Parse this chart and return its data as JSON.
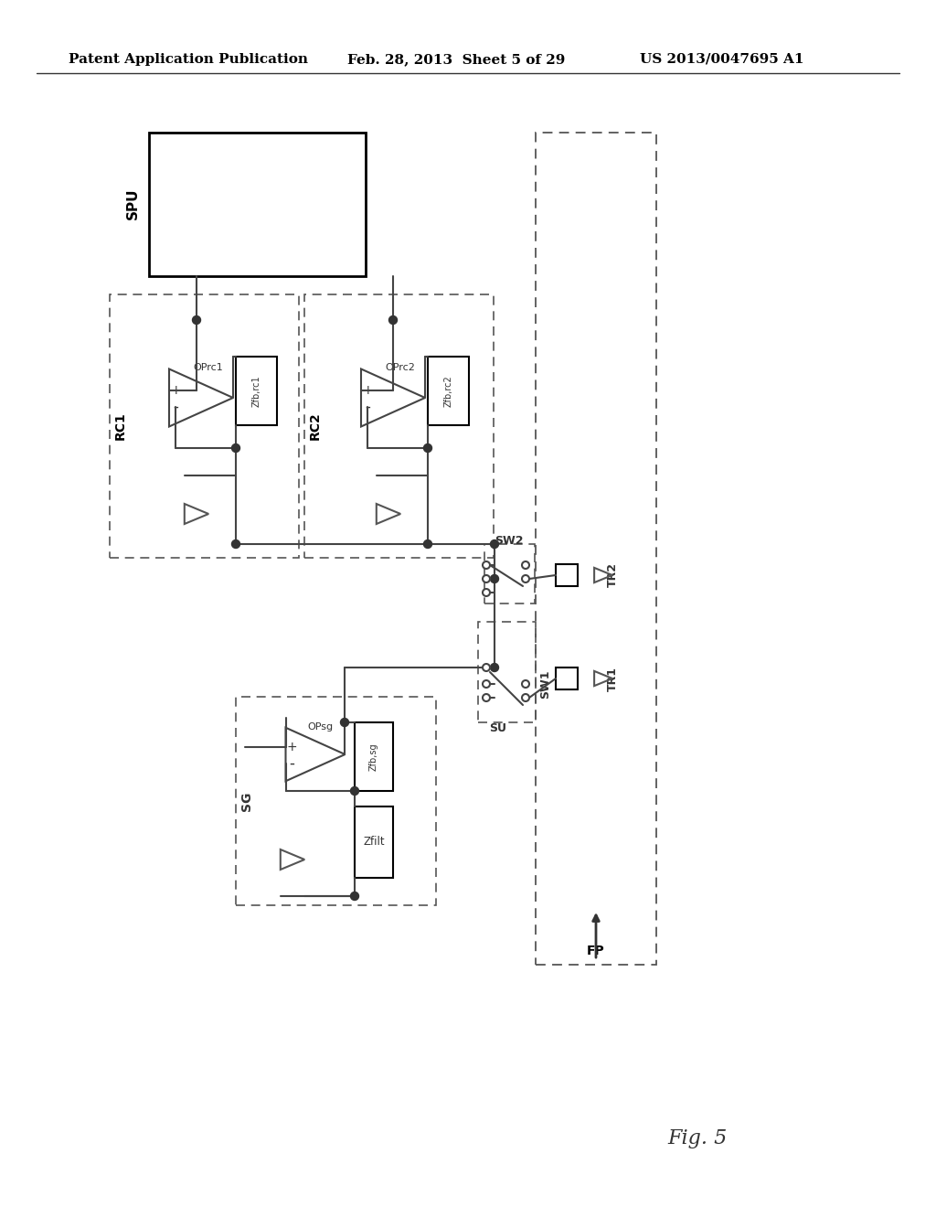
{
  "background_color": "#ffffff",
  "header_text": "Patent Application Publication",
  "header_date": "Feb. 28, 2013  Sheet 5 of 29",
  "header_patent": "US 2013/0047695 A1",
  "fig_label": "Fig. 5",
  "header_fontsize": 11,
  "label_fontsize": 10,
  "small_fontsize": 9,
  "fig_fontsize": 16
}
